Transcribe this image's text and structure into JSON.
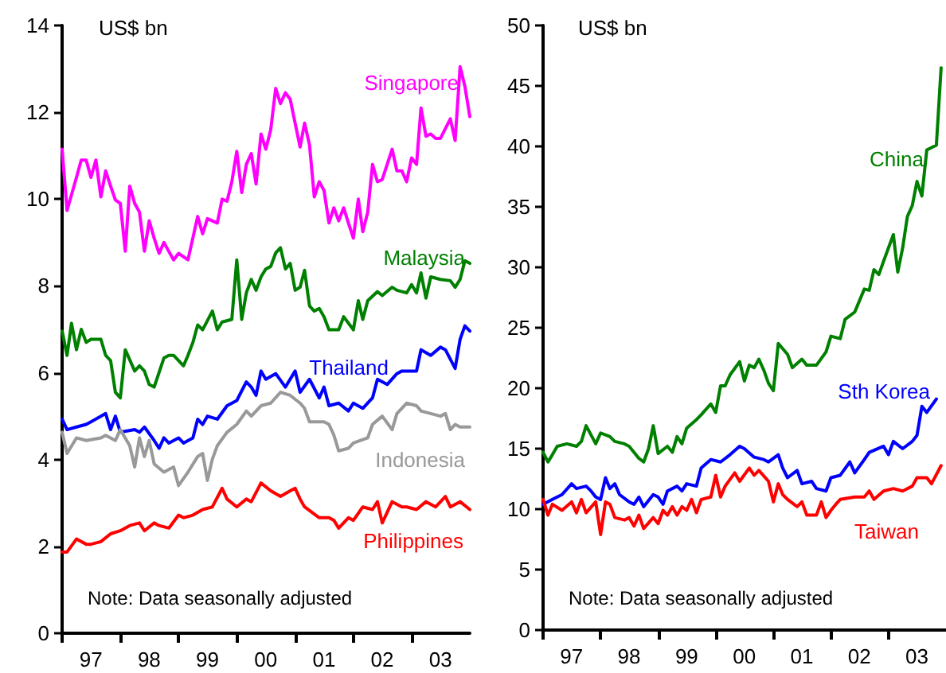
{
  "chart_data": [
    {
      "type": "line",
      "ylabel": "US$ bn",
      "annotations": [
        "Note: Data seasonally adjusted"
      ],
      "marker": "none",
      "xlim": [
        "1997-01",
        "2004-01"
      ],
      "xticks": [
        {
          "value": "1997",
          "label": null
        },
        {
          "value": "1997-07",
          "label": "97"
        },
        {
          "value": "1998",
          "label": null
        },
        {
          "value": "1998-07",
          "label": "98"
        },
        {
          "value": "1999",
          "label": null
        },
        {
          "value": "1999-07",
          "label": "99"
        },
        {
          "value": "2000",
          "label": null
        },
        {
          "value": "2000-07",
          "label": "00"
        },
        {
          "value": "2001",
          "label": null
        },
        {
          "value": "2001-07",
          "label": "01"
        },
        {
          "value": "2002",
          "label": null
        },
        {
          "value": "2002-07",
          "label": "02"
        },
        {
          "value": "2003",
          "label": null
        },
        {
          "value": "2003-07",
          "label": "03"
        }
      ],
      "ylim": [
        0,
        14
      ],
      "yticks": [
        0,
        2,
        4,
        6,
        8,
        10,
        12,
        14
      ],
      "series": [
        {
          "name": "Singapore",
          "color": "#ff00ff",
          "x": [
            "1997-01",
            "1997-02",
            "1997-04",
            "1997-05",
            "1997-06",
            "1997-07",
            "1997-08",
            "1997-09",
            "1997-10",
            "1997-11",
            "1997-12",
            "1998-01",
            "1998-02",
            "1998-03",
            "1998-04",
            "1998-05",
            "1998-06",
            "1998-07",
            "1998-08",
            "1998-09",
            "1998-10",
            "1998-12",
            "1999-01",
            "1999-03",
            "1999-05",
            "1999-06",
            "1999-07",
            "1999-09",
            "1999-10",
            "1999-11",
            "1999-12",
            "2000-01",
            "2000-02",
            "2000-03",
            "2000-04",
            "2000-05",
            "2000-06",
            "2000-07",
            "2000-08",
            "2000-09",
            "2000-10",
            "2000-11",
            "2000-12",
            "2001-01",
            "2001-02",
            "2001-03",
            "2001-04",
            "2001-05",
            "2001-06",
            "2001-07",
            "2001-08",
            "2001-09",
            "2001-10",
            "2001-11",
            "2001-12",
            "2002-01",
            "2002-02",
            "2002-03",
            "2002-04",
            "2002-05",
            "2002-06",
            "2002-07",
            "2002-09",
            "2002-10",
            "2002-11",
            "2002-12",
            "2003-01",
            "2003-02",
            "2003-03",
            "2003-04",
            "2003-05",
            "2003-06",
            "2003-07",
            "2003-09",
            "2003-10",
            "2003-11",
            "2003-12",
            "2004-01"
          ],
          "values": [
            11.15,
            9.74,
            10.5,
            10.9,
            10.9,
            10.5,
            10.9,
            10.05,
            10.65,
            10.3,
            9.98,
            9.9,
            8.8,
            10.3,
            9.9,
            9.7,
            8.8,
            9.5,
            9.1,
            8.75,
            9.0,
            8.6,
            8.75,
            8.6,
            9.6,
            9.2,
            9.55,
            9.45,
            10.0,
            9.95,
            10.4,
            11.1,
            10.15,
            10.8,
            11.05,
            10.35,
            11.5,
            11.15,
            11.6,
            12.55,
            12.2,
            12.45,
            12.3,
            11.75,
            11.2,
            11.75,
            11.25,
            10.05,
            10.4,
            10.2,
            9.45,
            9.8,
            9.5,
            9.8,
            9.45,
            9.1,
            10.0,
            9.25,
            9.7,
            10.8,
            10.4,
            10.45,
            11.15,
            10.65,
            10.65,
            10.4,
            10.95,
            10.8,
            12.1,
            11.45,
            11.5,
            11.4,
            11.4,
            11.85,
            11.35,
            13.05,
            12.6,
            11.9
          ]
        },
        {
          "name": "Malaysia",
          "color": "#008000",
          "x": [
            "1997-01",
            "1997-02",
            "1997-03",
            "1997-04",
            "1997-05",
            "1997-06",
            "1997-07",
            "1997-09",
            "1997-10",
            "1997-11",
            "1997-12",
            "1998-01",
            "1998-02",
            "1998-04",
            "1998-05",
            "1998-06",
            "1998-07",
            "1998-08",
            "1998-10",
            "1998-11",
            "1998-12",
            "1999-02",
            "1999-03",
            "1999-04",
            "1999-05",
            "1999-06",
            "1999-08",
            "1999-09",
            "1999-10",
            "1999-12",
            "2000-01",
            "2000-02",
            "2000-03",
            "2000-04",
            "2000-05",
            "2000-06",
            "2000-07",
            "2000-08",
            "2000-09",
            "2000-10",
            "2000-11",
            "2000-12",
            "2001-01",
            "2001-02",
            "2001-03",
            "2001-04",
            "2001-05",
            "2001-06",
            "2001-07",
            "2001-08",
            "2001-10",
            "2001-11",
            "2002-01",
            "2002-02",
            "2002-03",
            "2002-04",
            "2002-06",
            "2002-07",
            "2002-09",
            "2002-10",
            "2002-12",
            "2003-01",
            "2003-02",
            "2003-03",
            "2003-04",
            "2003-05",
            "2003-07",
            "2003-09",
            "2003-10",
            "2003-11",
            "2003-12",
            "2004-01"
          ],
          "values": [
            6.96,
            6.4,
            7.14,
            6.53,
            7.0,
            6.7,
            6.77,
            6.77,
            6.4,
            6.28,
            5.55,
            5.42,
            6.53,
            6.04,
            6.16,
            6.04,
            5.73,
            5.67,
            6.34,
            6.4,
            6.4,
            6.16,
            6.4,
            6.7,
            7.1,
            6.99,
            7.42,
            6.99,
            7.17,
            7.23,
            8.6,
            7.23,
            7.84,
            8.15,
            7.9,
            8.21,
            8.39,
            8.45,
            8.76,
            8.88,
            8.39,
            8.52,
            7.9,
            7.97,
            8.36,
            7.54,
            7.42,
            7.48,
            7.29,
            6.99,
            6.99,
            7.29,
            6.99,
            7.66,
            7.23,
            7.66,
            7.87,
            7.78,
            7.97,
            7.9,
            7.84,
            8.03,
            7.84,
            8.3,
            7.72,
            8.21,
            8.15,
            8.12,
            7.97,
            8.15,
            8.58,
            8.52
          ]
        },
        {
          "name": "Thailand",
          "color": "#0000ff",
          "x": [
            "1997-01",
            "1997-02",
            "1997-04",
            "1997-06",
            "1997-07",
            "1997-09",
            "1997-10",
            "1997-11",
            "1997-12",
            "1998-01",
            "1998-04",
            "1998-05",
            "1998-06",
            "1998-08",
            "1998-09",
            "1998-10",
            "1998-11",
            "1999-01",
            "1999-02",
            "1999-04",
            "1999-05",
            "1999-06",
            "1999-07",
            "1999-09",
            "1999-11",
            "2000-01",
            "2000-03",
            "2000-04",
            "2000-05",
            "2000-06",
            "2000-07",
            "2000-09",
            "2000-11",
            "2001-01",
            "2001-02",
            "2001-04",
            "2001-06",
            "2001-07",
            "2001-08",
            "2001-10",
            "2001-12",
            "2002-01",
            "2002-03",
            "2002-05",
            "2002-06",
            "2002-08",
            "2002-10",
            "2002-11",
            "2003-02",
            "2003-03",
            "2003-05",
            "2003-07",
            "2003-08",
            "2003-10",
            "2003-11",
            "2003-12",
            "2004-01"
          ],
          "values": [
            4.93,
            4.69,
            4.75,
            4.81,
            4.87,
            5.0,
            5.06,
            4.69,
            5.0,
            4.63,
            4.69,
            4.63,
            4.75,
            4.44,
            4.26,
            4.5,
            4.38,
            4.5,
            4.38,
            4.5,
            4.93,
            4.81,
            5.0,
            4.93,
            5.24,
            5.36,
            5.79,
            5.67,
            5.48,
            6.04,
            5.85,
            5.98,
            5.67,
            6.04,
            5.55,
            5.85,
            5.42,
            5.67,
            5.24,
            5.3,
            5.12,
            5.3,
            5.18,
            5.42,
            5.85,
            5.73,
            5.98,
            6.04,
            6.04,
            6.53,
            6.4,
            6.59,
            6.53,
            6.1,
            6.77,
            7.08,
            6.96
          ]
        },
        {
          "name": "Indonesia",
          "color": "#999999",
          "x": [
            "1997-01",
            "1997-02",
            "1997-04",
            "1997-06",
            "1997-09",
            "1997-10",
            "1997-12",
            "1998-01",
            "1998-03",
            "1998-04",
            "1998-05",
            "1998-06",
            "1998-07",
            "1998-08",
            "1998-10",
            "1998-12",
            "1999-01",
            "1999-03",
            "1999-05",
            "1999-06",
            "1999-07",
            "1999-08",
            "1999-09",
            "1999-11",
            "2000-01",
            "2000-03",
            "2000-04",
            "2000-06",
            "2000-08",
            "2000-10",
            "2000-12",
            "2001-02",
            "2001-03",
            "2001-04",
            "2001-07",
            "2001-08",
            "2001-09",
            "2001-10",
            "2001-12",
            "2002-01",
            "2002-04",
            "2002-05",
            "2002-07",
            "2002-09",
            "2002-10",
            "2002-12",
            "2003-02",
            "2003-03",
            "2003-05",
            "2003-07",
            "2003-08",
            "2003-09",
            "2003-10",
            "2003-11",
            "2004-01"
          ],
          "values": [
            4.63,
            4.14,
            4.5,
            4.44,
            4.5,
            4.56,
            4.44,
            4.69,
            4.32,
            3.83,
            4.5,
            4.07,
            4.44,
            3.9,
            3.71,
            3.83,
            3.4,
            3.71,
            4.07,
            4.14,
            3.52,
            4.01,
            4.32,
            4.63,
            4.81,
            5.12,
            5.0,
            5.24,
            5.3,
            5.55,
            5.48,
            5.3,
            5.18,
            4.87,
            4.87,
            4.81,
            4.56,
            4.2,
            4.26,
            4.38,
            4.5,
            4.81,
            5.0,
            4.69,
            5.06,
            5.3,
            5.24,
            5.12,
            5.06,
            5.0,
            5.06,
            4.69,
            4.81,
            4.75,
            4.75
          ]
        },
        {
          "name": "Philippines",
          "color": "#ff0000",
          "x": [
            "1997-01",
            "1997-02",
            "1997-04",
            "1997-06",
            "1997-07",
            "1997-09",
            "1997-11",
            "1998-01",
            "1998-03",
            "1998-05",
            "1998-06",
            "1998-08",
            "1998-09",
            "1998-11",
            "1999-01",
            "1999-02",
            "1999-04",
            "1999-06",
            "1999-08",
            "1999-10",
            "1999-11",
            "2000-01",
            "2000-03",
            "2000-04",
            "2000-06",
            "2000-08",
            "2000-10",
            "2000-12",
            "2001-01",
            "2001-02",
            "2001-03",
            "2001-06",
            "2001-08",
            "2001-09",
            "2001-10",
            "2001-12",
            "2002-01",
            "2002-03",
            "2002-05",
            "2002-06",
            "2002-07",
            "2002-09",
            "2002-11",
            "2002-12",
            "2003-02",
            "2003-04",
            "2003-06",
            "2003-08",
            "2003-09",
            "2003-11",
            "2004-01"
          ],
          "values": [
            1.87,
            1.87,
            2.17,
            2.05,
            2.05,
            2.11,
            2.29,
            2.36,
            2.48,
            2.54,
            2.36,
            2.54,
            2.48,
            2.42,
            2.72,
            2.66,
            2.72,
            2.85,
            2.91,
            3.34,
            3.09,
            2.91,
            3.09,
            3.03,
            3.46,
            3.28,
            3.15,
            3.28,
            3.34,
            3.09,
            2.91,
            2.66,
            2.66,
            2.6,
            2.42,
            2.66,
            2.6,
            2.91,
            2.85,
            3.03,
            2.54,
            3.03,
            2.91,
            2.91,
            2.85,
            3.03,
            2.91,
            3.15,
            2.91,
            3.03,
            2.85
          ]
        }
      ]
    },
    {
      "type": "line",
      "ylabel": "US$ bn",
      "annotations": [
        "Note: Data seasonally adjusted"
      ],
      "marker": "none",
      "xlim": [
        "1997-01",
        "2004-01"
      ],
      "xticks": [
        {
          "value": "1997",
          "label": null
        },
        {
          "value": "1997-07",
          "label": "97"
        },
        {
          "value": "1998",
          "label": null
        },
        {
          "value": "1998-07",
          "label": "98"
        },
        {
          "value": "1999",
          "label": null
        },
        {
          "value": "1999-07",
          "label": "99"
        },
        {
          "value": "2000",
          "label": null
        },
        {
          "value": "2000-07",
          "label": "00"
        },
        {
          "value": "2001",
          "label": null
        },
        {
          "value": "2001-07",
          "label": "01"
        },
        {
          "value": "2002",
          "label": null
        },
        {
          "value": "2002-07",
          "label": "02"
        },
        {
          "value": "2003",
          "label": null
        },
        {
          "value": "2003-07",
          "label": "03"
        }
      ],
      "ylim": [
        0,
        50
      ],
      "yticks": [
        0,
        5,
        10,
        15,
        20,
        25,
        30,
        35,
        40,
        45,
        50
      ],
      "series": [
        {
          "name": "China",
          "color": "#008000",
          "x": [
            "1997-01",
            "1997-02",
            "1997-03",
            "1997-04",
            "1997-06",
            "1997-08",
            "1997-09",
            "1997-10",
            "1997-12",
            "1998-01",
            "1998-03",
            "1998-04",
            "1998-06",
            "1998-07",
            "1998-09",
            "1998-10",
            "1998-11",
            "1998-12",
            "1999-01",
            "1999-03",
            "1999-04",
            "1999-05",
            "1999-06",
            "1999-07",
            "1999-09",
            "1999-10",
            "1999-12",
            "2000-01",
            "2000-02",
            "2000-03",
            "2000-04",
            "2000-06",
            "2000-07",
            "2000-08",
            "2000-09",
            "2000-10",
            "2000-11",
            "2000-12",
            "2001-01",
            "2001-02",
            "2001-04",
            "2001-05",
            "2001-07",
            "2001-08",
            "2001-10",
            "2001-12",
            "2002-01",
            "2002-03",
            "2002-04",
            "2002-06",
            "2002-08",
            "2002-09",
            "2002-10",
            "2002-11",
            "2002-12",
            "2003-02",
            "2003-03",
            "2003-04",
            "2003-05",
            "2003-06",
            "2003-07",
            "2003-08",
            "2003-09",
            "2003-11",
            "2003-12"
          ],
          "values": [
            14.7,
            13.9,
            14.5,
            15.2,
            15.4,
            15.2,
            15.6,
            16.9,
            15.4,
            16.3,
            16.0,
            15.6,
            15.4,
            15.2,
            14.2,
            13.9,
            15.0,
            16.9,
            14.6,
            15.2,
            14.7,
            16.0,
            15.4,
            16.7,
            17.4,
            17.8,
            18.7,
            18.0,
            20.2,
            20.2,
            21.1,
            22.2,
            20.6,
            21.9,
            21.7,
            22.4,
            21.5,
            20.4,
            19.8,
            23.7,
            22.8,
            21.7,
            22.4,
            21.9,
            21.9,
            23.0,
            24.3,
            24.1,
            25.7,
            26.3,
            28.2,
            28.1,
            29.8,
            29.4,
            30.5,
            32.7,
            29.6,
            31.6,
            34.2,
            35.1,
            37.1,
            35.9,
            39.7,
            40.1,
            46.5
          ]
        },
        {
          "name": "Sth Korea",
          "color": "#0000ff",
          "x": [
            "1997-01",
            "1997-03",
            "1997-05",
            "1997-07",
            "1997-08",
            "1997-10",
            "1997-11",
            "1997-12",
            "1998-01",
            "1998-02",
            "1998-03",
            "1998-04",
            "1998-05",
            "1998-07",
            "1998-08",
            "1998-09",
            "1998-10",
            "1998-12",
            "1999-01",
            "1999-02",
            "1999-03",
            "1999-05",
            "1999-06",
            "1999-07",
            "1999-09",
            "1999-10",
            "1999-12",
            "2000-02",
            "2000-04",
            "2000-06",
            "2000-07",
            "2000-09",
            "2000-11",
            "2000-12",
            "2001-02",
            "2001-03",
            "2001-04",
            "2001-06",
            "2001-07",
            "2001-09",
            "2001-10",
            "2001-12",
            "2002-01",
            "2002-03",
            "2002-05",
            "2002-06",
            "2002-08",
            "2002-09",
            "2002-12",
            "2003-01",
            "2003-02",
            "2003-04",
            "2003-06",
            "2003-07",
            "2003-08",
            "2003-09",
            "2003-11"
          ],
          "values": [
            10.4,
            10.8,
            11.2,
            12.1,
            11.7,
            11.9,
            11.5,
            11.0,
            10.8,
            12.6,
            11.7,
            12.1,
            11.2,
            10.6,
            10.4,
            11.0,
            10.2,
            11.2,
            11.0,
            10.4,
            11.5,
            11.9,
            11.5,
            12.1,
            11.9,
            13.4,
            14.1,
            13.9,
            14.5,
            15.2,
            15.0,
            14.3,
            14.1,
            13.9,
            14.5,
            13.4,
            12.6,
            13.2,
            12.1,
            12.3,
            11.7,
            11.5,
            12.6,
            12.8,
            13.9,
            13.0,
            14.1,
            14.7,
            15.2,
            14.5,
            15.6,
            15.0,
            15.6,
            16.1,
            18.5,
            18.0,
            19.1
          ]
        },
        {
          "name": "Taiwan",
          "color": "#ff0000",
          "x": [
            "1997-01",
            "1997-02",
            "1997-03",
            "1997-05",
            "1997-07",
            "1997-08",
            "1997-09",
            "1997-10",
            "1997-12",
            "1998-01",
            "1998-02",
            "1998-03",
            "1998-04",
            "1998-06",
            "1998-07",
            "1998-08",
            "1998-09",
            "1998-10",
            "1998-12",
            "1999-01",
            "1999-02",
            "1999-03",
            "1999-04",
            "1999-05",
            "1999-06",
            "1999-07",
            "1999-08",
            "1999-09",
            "1999-10",
            "1999-12",
            "2000-01",
            "2000-02",
            "2000-03",
            "2000-05",
            "2000-06",
            "2000-08",
            "2000-09",
            "2000-10",
            "2000-12",
            "2001-01",
            "2001-02",
            "2001-03",
            "2001-04",
            "2001-06",
            "2001-07",
            "2001-08",
            "2001-10",
            "2001-11",
            "2001-12",
            "2002-01",
            "2002-02",
            "2002-03",
            "2002-06",
            "2002-08",
            "2002-09",
            "2002-10",
            "2002-12",
            "2003-02",
            "2003-04",
            "2003-06",
            "2003-07",
            "2003-09",
            "2003-10",
            "2003-12"
          ],
          "values": [
            10.8,
            9.5,
            10.4,
            9.9,
            10.6,
            9.7,
            10.8,
            9.7,
            10.6,
            7.9,
            10.6,
            10.4,
            9.3,
            9.1,
            9.3,
            8.6,
            9.5,
            8.4,
            9.3,
            8.8,
            9.9,
            9.5,
            10.2,
            9.5,
            10.2,
            9.9,
            10.8,
            9.7,
            10.8,
            11.0,
            12.8,
            11.0,
            11.9,
            13.0,
            12.3,
            13.4,
            12.8,
            13.2,
            12.3,
            10.6,
            12.1,
            11.2,
            10.8,
            10.2,
            10.6,
            9.5,
            9.5,
            10.6,
            9.3,
            9.9,
            10.4,
            10.8,
            11.0,
            11.0,
            11.5,
            10.8,
            11.5,
            11.7,
            11.5,
            11.9,
            12.6,
            12.6,
            12.1,
            13.6
          ]
        }
      ]
    }
  ]
}
